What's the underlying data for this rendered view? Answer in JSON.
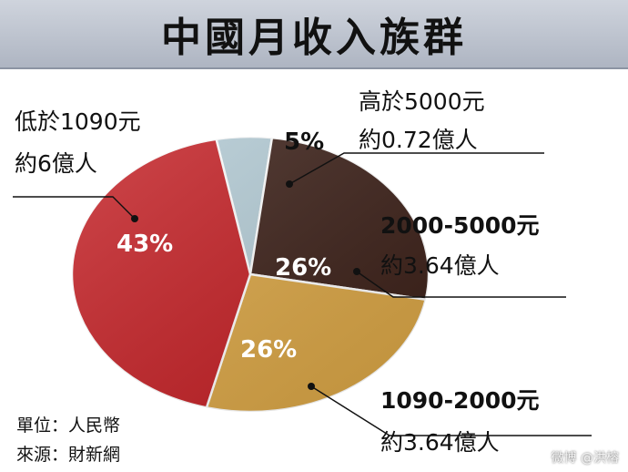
{
  "header": {
    "title": "中國月收入族群"
  },
  "chart_data": {
    "type": "pie",
    "title": "中國月收入族群",
    "slices": [
      {
        "name": "高於5000元",
        "value": 5,
        "label": "5%",
        "sub": "約0.72億人",
        "color": "#b4ccd6"
      },
      {
        "name": "2000-5000元",
        "value": 26,
        "label": "26%",
        "sub": "約3.64億人",
        "color": "#3b1f17"
      },
      {
        "name": "1090-2000元",
        "value": 26,
        "label": "26%",
        "sub": "約3.64億人",
        "color": "#daa544"
      },
      {
        "name": "低於1090元",
        "value": 43,
        "label": "43%",
        "sub": "約6億人",
        "color": "#c41f24"
      }
    ]
  },
  "footer": {
    "unit": "單位：人民幣",
    "source": "來源：財新網"
  },
  "watermark": "微博 @洪榕"
}
